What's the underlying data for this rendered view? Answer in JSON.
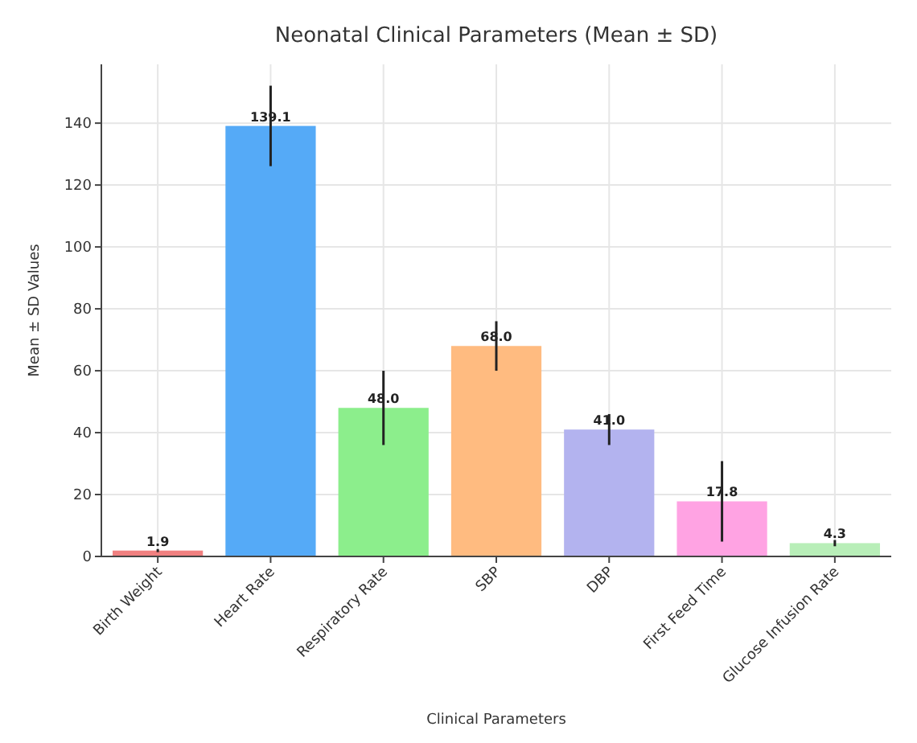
{
  "chart_data": {
    "type": "bar",
    "title": "Neonatal Clinical Parameters (Mean ± SD)",
    "xlabel": "Clinical Parameters",
    "ylabel": "Mean ± SD Values",
    "categories": [
      "Birth Weight",
      "Heart Rate",
      "Respiratory Rate",
      "SBP",
      "DBP",
      "First Feed Time",
      "Glucose Infusion Rate"
    ],
    "values": [
      1.9,
      139.1,
      48.0,
      68.0,
      41.0,
      17.8,
      4.3
    ],
    "errors": [
      0.5,
      13,
      12,
      8,
      5,
      13,
      1
    ],
    "value_labels": [
      "1.9",
      "139.1",
      "48.0",
      "68.0",
      "41.0",
      "17.8",
      "4.3"
    ],
    "colors": [
      "#f08080",
      "#55aaf7",
      "#8cee8c",
      "#ffbb80",
      "#b3b3ef",
      "#ffa3e3",
      "#b8eeb8"
    ],
    "ylim": [
      0,
      159
    ],
    "yticks": [
      0,
      20,
      40,
      60,
      80,
      100,
      120,
      140
    ],
    "grid": true
  }
}
